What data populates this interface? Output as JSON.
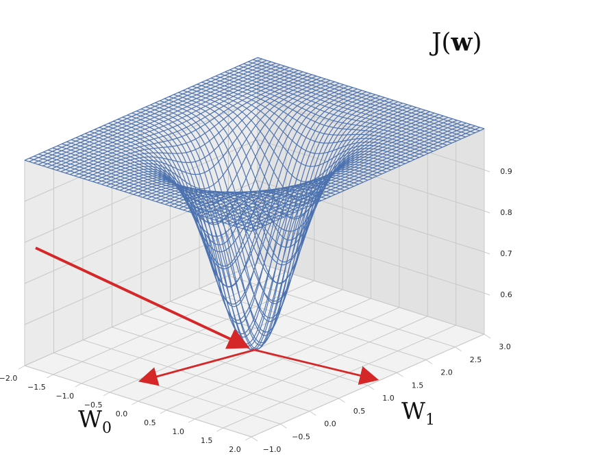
{
  "chart_data": {
    "type": "surface_wireframe",
    "title": "",
    "z_label": {
      "prefix": "J(",
      "bold": "w",
      "suffix": ")"
    },
    "x_label": {
      "base": "W",
      "sub": "0"
    },
    "y_label": {
      "base": "W",
      "sub": "1"
    },
    "x_range": [
      -2.0,
      2.0
    ],
    "y_range": [
      -1.0,
      3.0
    ],
    "z_range": [
      0.5,
      1.0
    ],
    "x_ticks": [
      "−2.0",
      "−1.5",
      "−1.0",
      "−0.5",
      "0.0",
      "0.5",
      "1.0",
      "1.5",
      "2.0"
    ],
    "x_tick_values": [
      -2.0,
      -1.5,
      -1.0,
      -0.5,
      0.0,
      0.5,
      1.0,
      1.5,
      2.0
    ],
    "y_ticks": [
      "−1.0",
      "−0.5",
      "0.0",
      "0.5",
      "1.0",
      "1.5",
      "2.0",
      "2.5",
      "3.0"
    ],
    "y_tick_values": [
      -1.0,
      -0.5,
      0.0,
      0.5,
      1.0,
      1.5,
      2.0,
      2.5,
      3.0
    ],
    "z_ticks": [
      "0.6",
      "0.7",
      "0.8",
      "0.9"
    ],
    "z_tick_values": [
      0.6,
      0.7,
      0.8,
      0.9
    ],
    "surface": {
      "function": "1 - 0.5*exp(-((w0)^2 + (w1-1)^2)/0.5)",
      "grid_count": 50,
      "color": "#4c72b0"
    },
    "minimum": {
      "w0": 0.0,
      "w1": 1.0,
      "z": 0.5
    },
    "arrows_color": "#d62728",
    "grid": true
  }
}
